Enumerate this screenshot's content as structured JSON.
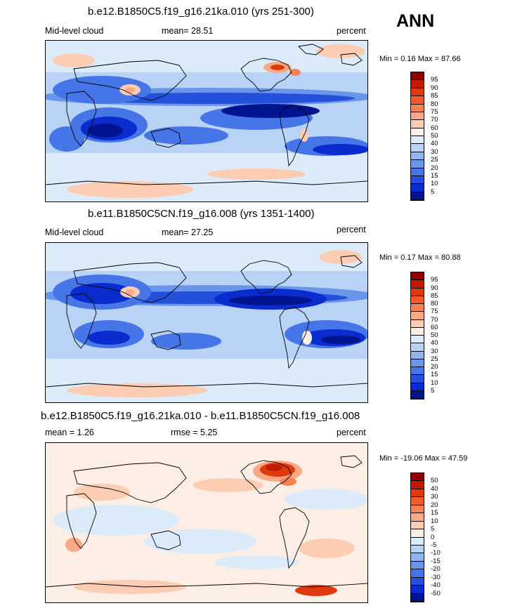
{
  "season": "ANN",
  "panels": [
    {
      "title": "b.e12.B1850C5.f19_g16.21ka.010 (yrs 251-300)",
      "left_label": "Mid-level cloud",
      "center_label": "mean=  28.51",
      "right_label": "percent",
      "minmax": "Min =   0.16 Max =  87.66"
    },
    {
      "title": "b.e11.B1850C5CN.f19_g16.008 (yrs 1351-1400)",
      "left_label": "Mid-level cloud",
      "center_label": "mean=  27.25",
      "right_label": "percent",
      "minmax": "Min =   0.17 Max =  80.88"
    },
    {
      "title": "b.e12.B1850C5.f19_g16.21ka.010 - b.e11.B1850C5CN.f19_g16.008",
      "left_label": "mean =   1.26",
      "center_label": "rmse =   5.25",
      "right_label": "percent",
      "minmax": "Min = -19.06 Max =  47.59"
    }
  ],
  "colorbar_abs": {
    "labels": [
      "95",
      "90",
      "85",
      "80",
      "75",
      "70",
      "60",
      "50",
      "40",
      "30",
      "25",
      "20",
      "15",
      "10",
      "5"
    ],
    "colors": [
      "#8c0000",
      "#c01a00",
      "#de3a0e",
      "#f15a2a",
      "#f78254",
      "#f9a985",
      "#fccdb3",
      "#fdeee5",
      "#dcebfa",
      "#b8d3f5",
      "#90b5ef",
      "#6a96ea",
      "#4575e6",
      "#2450dc",
      "#0a2ccf",
      "#00148f"
    ]
  },
  "colorbar_diff": {
    "labels": [
      "50",
      "40",
      "30",
      "20",
      "15",
      "10",
      "5",
      "0",
      "-5",
      "-10",
      "-15",
      "-20",
      "-30",
      "-40",
      "-50"
    ],
    "colors": [
      "#8c0000",
      "#c01a00",
      "#de3a0e",
      "#f15a2a",
      "#f78254",
      "#f9a985",
      "#fccdb3",
      "#fdeee5",
      "#dcebfa",
      "#b8d3f5",
      "#90b5ef",
      "#6a96ea",
      "#4575e6",
      "#2450dc",
      "#0a2ccf",
      "#00148f"
    ]
  }
}
